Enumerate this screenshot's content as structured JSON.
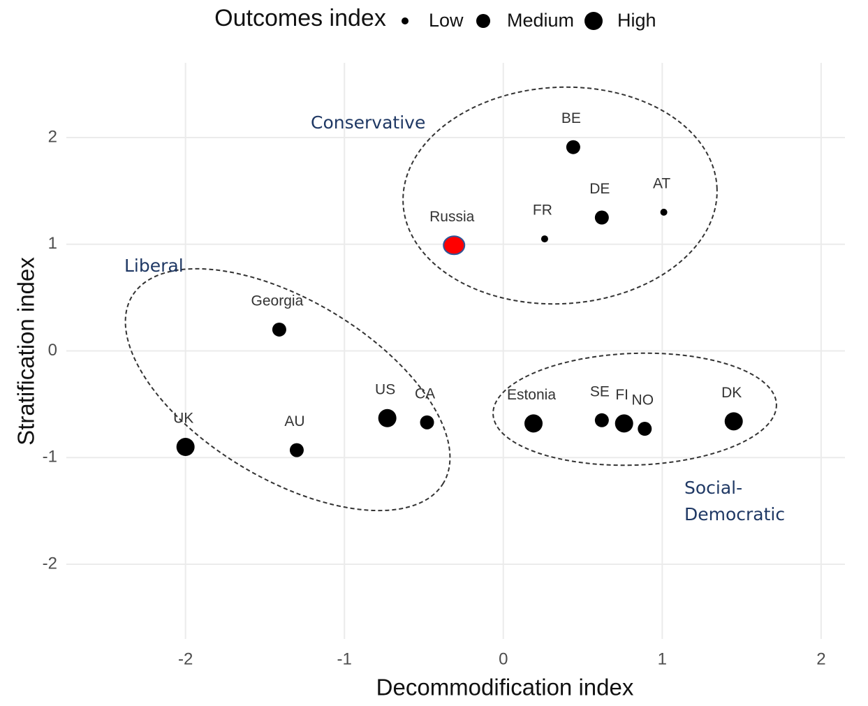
{
  "chart_data": {
    "type": "scatter",
    "legend_title": "Outcomes index",
    "levels": [
      "Low",
      "Medium",
      "High"
    ],
    "xlabel": "Decommodification index",
    "ylabel": "Stratification index",
    "labels": [
      "UK",
      "AU",
      "Georgia",
      "US",
      "CA",
      "Russia",
      "FR",
      "BE",
      "DE",
      "AT",
      "Estonia",
      "SE",
      "FI",
      "NO",
      "DK"
    ],
    "x": [
      -2,
      -1.3,
      -1.41,
      -0.73,
      -0.48,
      -0.31,
      0.26,
      0.44,
      0.62,
      1.01,
      0.19,
      0.62,
      0.76,
      0.89,
      1.45
    ],
    "y": [
      -0.9,
      -0.93,
      0.2,
      -0.63,
      -0.67,
      0.99,
      1.05,
      1.91,
      1.25,
      1.3,
      -0.68,
      -0.65,
      -0.68,
      -0.73,
      -0.66
    ],
    "outcome": [
      "High",
      "Medium",
      "Medium",
      "High",
      "Medium",
      "High",
      "Low",
      "Medium",
      "Medium",
      "Low",
      "High",
      "Medium",
      "High",
      "Medium",
      "High"
    ],
    "colors": [
      "#000000",
      "#000000",
      "#000000",
      "#000000",
      "#000000",
      "#ff0000",
      "#000000",
      "#000000",
      "#000000",
      "#000000",
      "#000000",
      "#000000",
      "#000000",
      "#000000",
      "#000000"
    ],
    "groups": [
      [
        "Conservative"
      ],
      [
        "Liberal"
      ],
      [
        "Social-",
        "Democratic"
      ]
    ],
    "xlim": [
      -2.75,
      2.15
    ],
    "ylim": [
      -2.7,
      2.7
    ],
    "xticks": [
      -2,
      -1,
      0,
      1,
      2
    ],
    "yticks": [
      -2,
      -1,
      0,
      1,
      2
    ],
    "grid": true
  }
}
